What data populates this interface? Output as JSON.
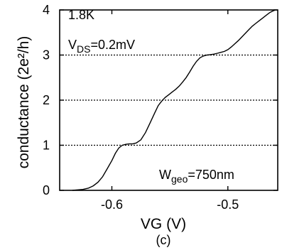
{
  "chart_data": {
    "type": "line",
    "xlabel": "VG (V)",
    "ylabel": "conductance (2e²/h)",
    "xlim": [
      -0.645,
      -0.457
    ],
    "ylim": [
      0,
      4
    ],
    "x_ticks": [
      {
        "value": -0.6,
        "label": "-0.6"
      },
      {
        "value": -0.5,
        "label": "-0.5"
      }
    ],
    "y_ticks": [
      {
        "value": 0,
        "label": "0"
      },
      {
        "value": 1,
        "label": "1"
      },
      {
        "value": 2,
        "label": "2"
      },
      {
        "value": 3,
        "label": "3"
      },
      {
        "value": 4,
        "label": "4"
      }
    ],
    "reference_lines": [
      1,
      2,
      3
    ],
    "annotations": {
      "temperature": "1.8K",
      "vds_main": "V",
      "vds_sub": "DS",
      "vds_rest": "=0.2mV",
      "wgeo_main": "W",
      "wgeo_sub": "geo",
      "wgeo_rest": "=750nm"
    },
    "panel_label": "(c)",
    "series": [
      {
        "x": [
          -0.634,
          -0.625,
          -0.62,
          -0.616,
          -0.612,
          -0.608,
          -0.604,
          -0.6,
          -0.597,
          -0.594,
          -0.591,
          -0.588,
          -0.585,
          -0.582,
          -0.579,
          -0.575,
          -0.571,
          -0.567,
          -0.563,
          -0.56,
          -0.557,
          -0.554,
          -0.551,
          -0.548,
          -0.545,
          -0.542,
          -0.539,
          -0.536,
          -0.533,
          -0.53,
          -0.527,
          -0.524,
          -0.521,
          -0.518,
          -0.515,
          -0.512,
          -0.509,
          -0.506,
          -0.503,
          -0.5,
          -0.497,
          -0.494,
          -0.491,
          -0.488,
          -0.485,
          -0.482,
          -0.479,
          -0.476,
          -0.473,
          -0.47,
          -0.467,
          -0.464,
          -0.461,
          -0.459
        ],
        "y": [
          0.0,
          0.02,
          0.05,
          0.1,
          0.18,
          0.3,
          0.48,
          0.66,
          0.82,
          0.94,
          1.0,
          1.02,
          1.03,
          1.03,
          1.05,
          1.12,
          1.28,
          1.5,
          1.72,
          1.88,
          1.98,
          2.06,
          2.12,
          2.18,
          2.24,
          2.31,
          2.4,
          2.5,
          2.62,
          2.75,
          2.86,
          2.94,
          2.98,
          3.0,
          3.01,
          3.02,
          3.04,
          3.06,
          3.08,
          3.12,
          3.18,
          3.25,
          3.32,
          3.4,
          3.48,
          3.56,
          3.64,
          3.7,
          3.76,
          3.82,
          3.88,
          3.94,
          3.98,
          4.0
        ]
      }
    ]
  }
}
